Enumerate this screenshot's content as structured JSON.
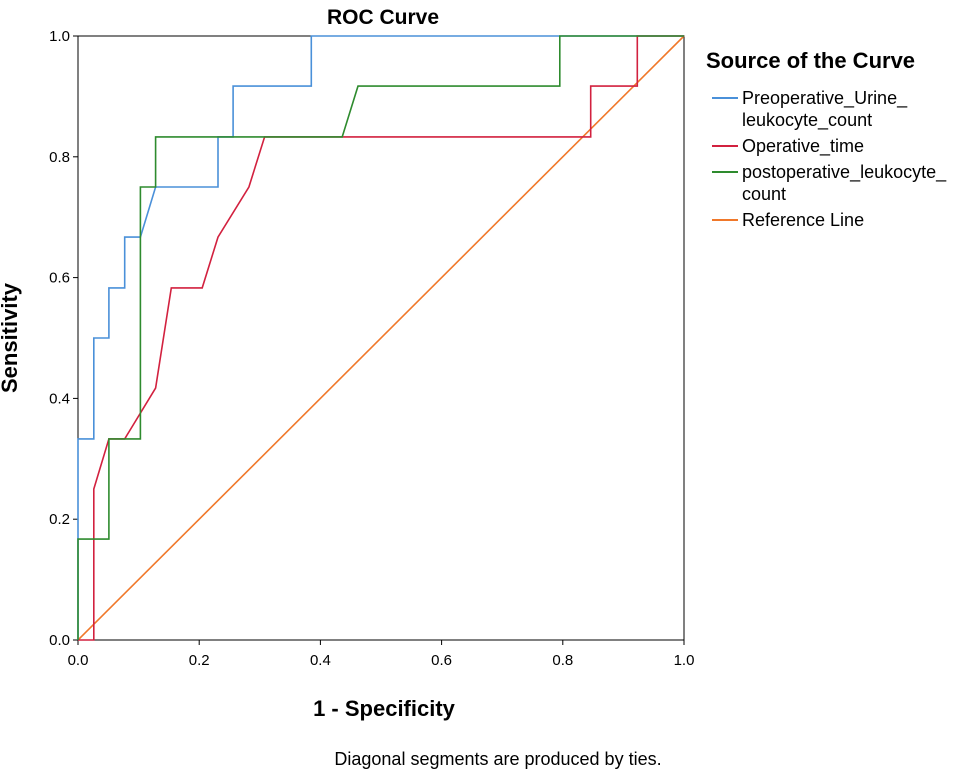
{
  "chart_data": {
    "type": "line",
    "title": "ROC Curve",
    "xlabel": "1 - Specificity",
    "ylabel": "Sensitivity",
    "xlim": [
      0.0,
      1.0
    ],
    "ylim": [
      0.0,
      1.0
    ],
    "x_ticks": [
      "0.0",
      "0.2",
      "0.4",
      "0.6",
      "0.8",
      "1.0"
    ],
    "y_ticks": [
      "0.0",
      "0.2",
      "0.4",
      "0.6",
      "0.8",
      "1.0"
    ],
    "legend_title": "Source of the Curve",
    "legend_position": "right",
    "footnote": "Diagonal segments are produced by ties.",
    "series": [
      {
        "name": "Preoperative_Urine_ leukocyte_count",
        "legend_lines": [
          "Preoperative_Urine_",
          "leukocyte_count"
        ],
        "color": "#4a90d9",
        "points": [
          [
            0,
            0
          ],
          [
            0,
            0.333
          ],
          [
            0.026,
            0.333
          ],
          [
            0.026,
            0.5
          ],
          [
            0.051,
            0.5
          ],
          [
            0.051,
            0.583
          ],
          [
            0.077,
            0.583
          ],
          [
            0.077,
            0.667
          ],
          [
            0.103,
            0.667
          ],
          [
            0.128,
            0.75
          ],
          [
            0.231,
            0.75
          ],
          [
            0.231,
            0.833
          ],
          [
            0.256,
            0.833
          ],
          [
            0.256,
            0.917
          ],
          [
            0.385,
            0.917
          ],
          [
            0.385,
            1.0
          ],
          [
            1.0,
            1.0
          ]
        ]
      },
      {
        "name": "Operative_time",
        "legend_lines": [
          "Operative_time"
        ],
        "color": "#d2213f",
        "points": [
          [
            0,
            0
          ],
          [
            0.026,
            0
          ],
          [
            0.026,
            0.25
          ],
          [
            0.051,
            0.333
          ],
          [
            0.077,
            0.333
          ],
          [
            0.128,
            0.417
          ],
          [
            0.154,
            0.583
          ],
          [
            0.205,
            0.583
          ],
          [
            0.231,
            0.667
          ],
          [
            0.282,
            0.75
          ],
          [
            0.308,
            0.833
          ],
          [
            0.846,
            0.833
          ],
          [
            0.846,
            0.917
          ],
          [
            0.923,
            0.917
          ],
          [
            0.923,
            1.0
          ],
          [
            1.0,
            1.0
          ]
        ]
      },
      {
        "name": "postoperative_leukocyte_ count",
        "legend_lines": [
          "postoperative_leukocyte_",
          "count"
        ],
        "color": "#2e8b2e",
        "points": [
          [
            0,
            0
          ],
          [
            0,
            0.167
          ],
          [
            0.051,
            0.167
          ],
          [
            0.051,
            0.333
          ],
          [
            0.103,
            0.333
          ],
          [
            0.103,
            0.75
          ],
          [
            0.128,
            0.75
          ],
          [
            0.128,
            0.833
          ],
          [
            0.436,
            0.833
          ],
          [
            0.462,
            0.917
          ],
          [
            0.795,
            0.917
          ],
          [
            0.795,
            1.0
          ],
          [
            1.0,
            1.0
          ]
        ]
      },
      {
        "name": "Reference Line",
        "legend_lines": [
          "Reference Line"
        ],
        "color": "#f0782a",
        "points": [
          [
            0,
            0
          ],
          [
            1.0,
            1.0
          ]
        ]
      }
    ]
  }
}
